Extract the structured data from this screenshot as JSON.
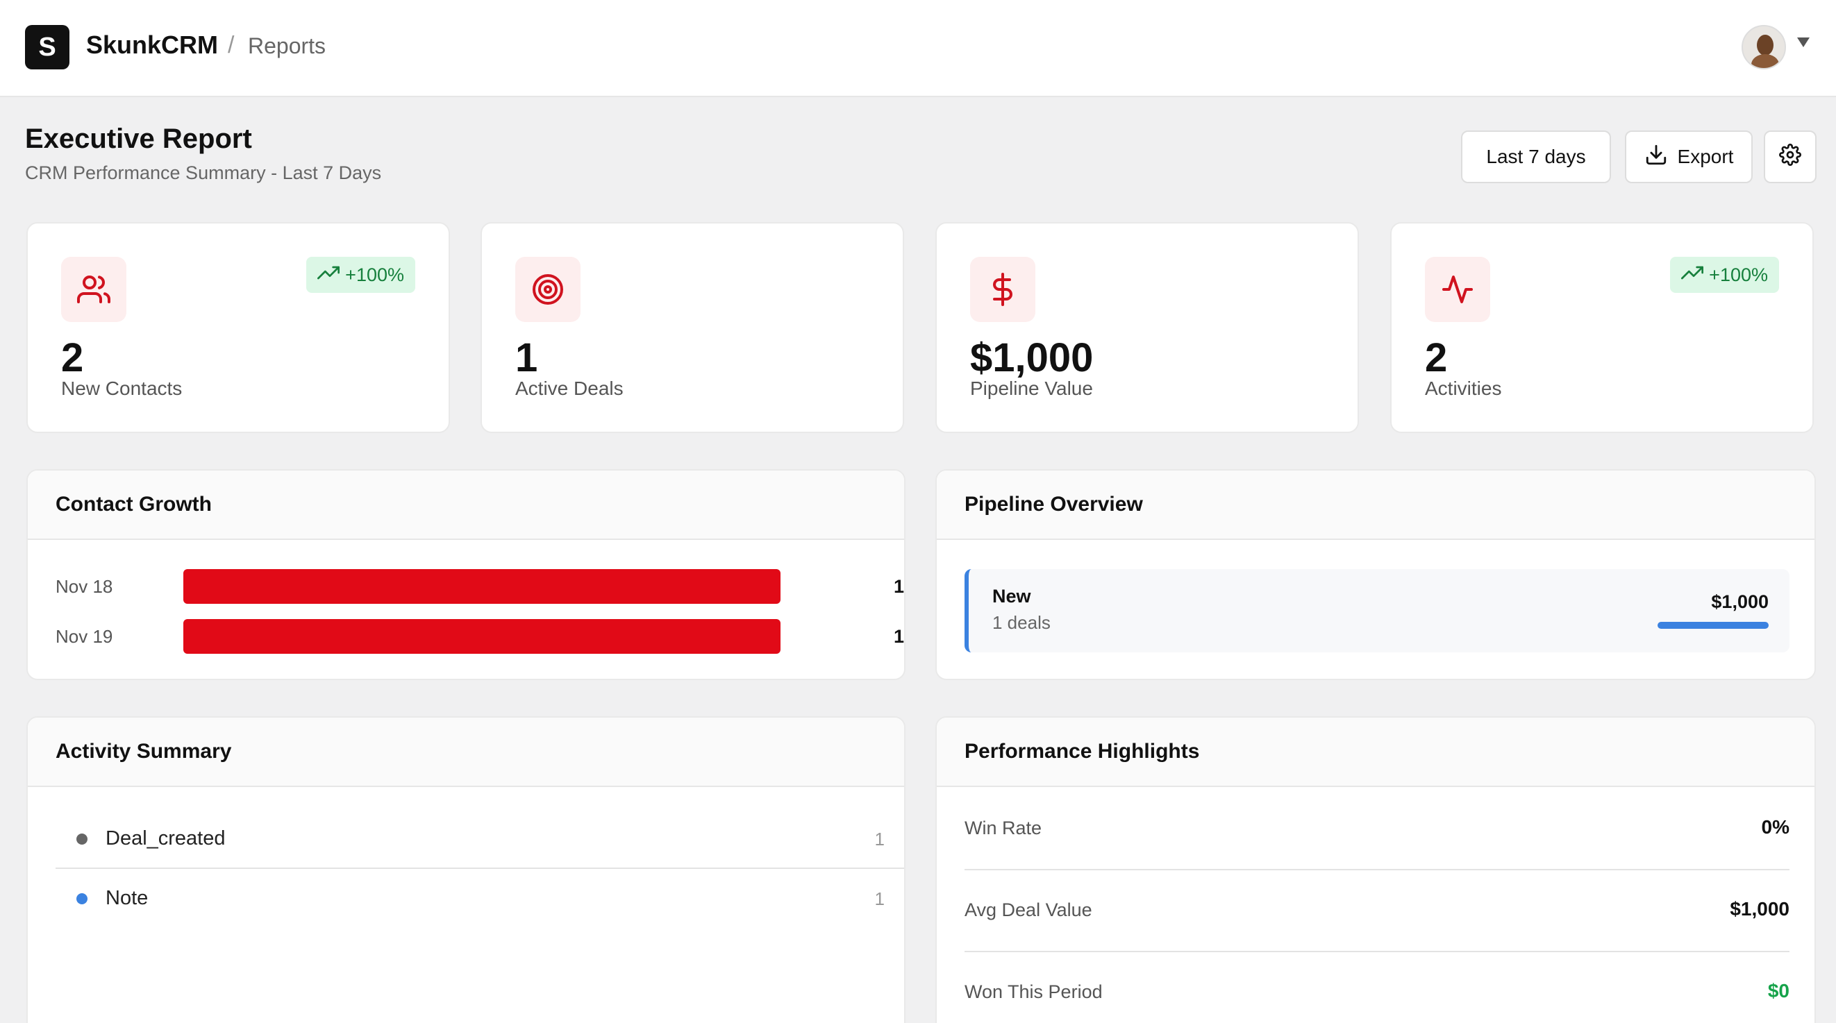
{
  "header": {
    "logo_letter": "S",
    "brand": "SkunkCRM",
    "separator": "/",
    "section": "Reports"
  },
  "page": {
    "title": "Executive Report",
    "subtitle": "CRM Performance Summary - Last 7 Days"
  },
  "toolbar": {
    "range_label": "Last 7 days",
    "export_label": "Export"
  },
  "stats": [
    {
      "icon": "users-icon",
      "value": "2",
      "label": "New Contacts",
      "badge": "+100%"
    },
    {
      "icon": "target-icon",
      "value": "1",
      "label": "Active Deals",
      "badge": ""
    },
    {
      "icon": "dollar-icon",
      "value": "$1,000",
      "label": "Pipeline Value",
      "badge": ""
    },
    {
      "icon": "activity-icon",
      "value": "2",
      "label": "Activities",
      "badge": "+100%"
    }
  ],
  "contact_growth": {
    "title": "Contact Growth",
    "rows": [
      {
        "date": "Nov 18",
        "count": "1"
      },
      {
        "date": "Nov 19",
        "count": "1"
      }
    ]
  },
  "chart_data": {
    "type": "bar",
    "title": "Contact Growth",
    "categories": [
      "Nov 18",
      "Nov 19"
    ],
    "values": [
      1,
      1
    ],
    "xlabel": "",
    "ylabel": ""
  },
  "pipeline": {
    "title": "Pipeline Overview",
    "stages": [
      {
        "name": "New",
        "deals": "1 deals",
        "amount": "$1,000",
        "share": 1.0
      }
    ]
  },
  "activity_summary": {
    "title": "Activity Summary",
    "items": [
      {
        "name": "Deal_created",
        "count": "1",
        "color": "#666666"
      },
      {
        "name": "Note",
        "count": "1",
        "color": "#3b82e0"
      }
    ]
  },
  "performance": {
    "title": "Performance Highlights",
    "rows": [
      {
        "label": "Win Rate",
        "value": "0%"
      },
      {
        "label": "Avg Deal Value",
        "value": "$1,000"
      },
      {
        "label": "Won This Period",
        "value": "$0",
        "color": "#16a34a"
      }
    ]
  },
  "colors": {
    "accent_red": "#e10a17",
    "accent_blue": "#3b82e0",
    "positive_green": "#16a34a"
  }
}
